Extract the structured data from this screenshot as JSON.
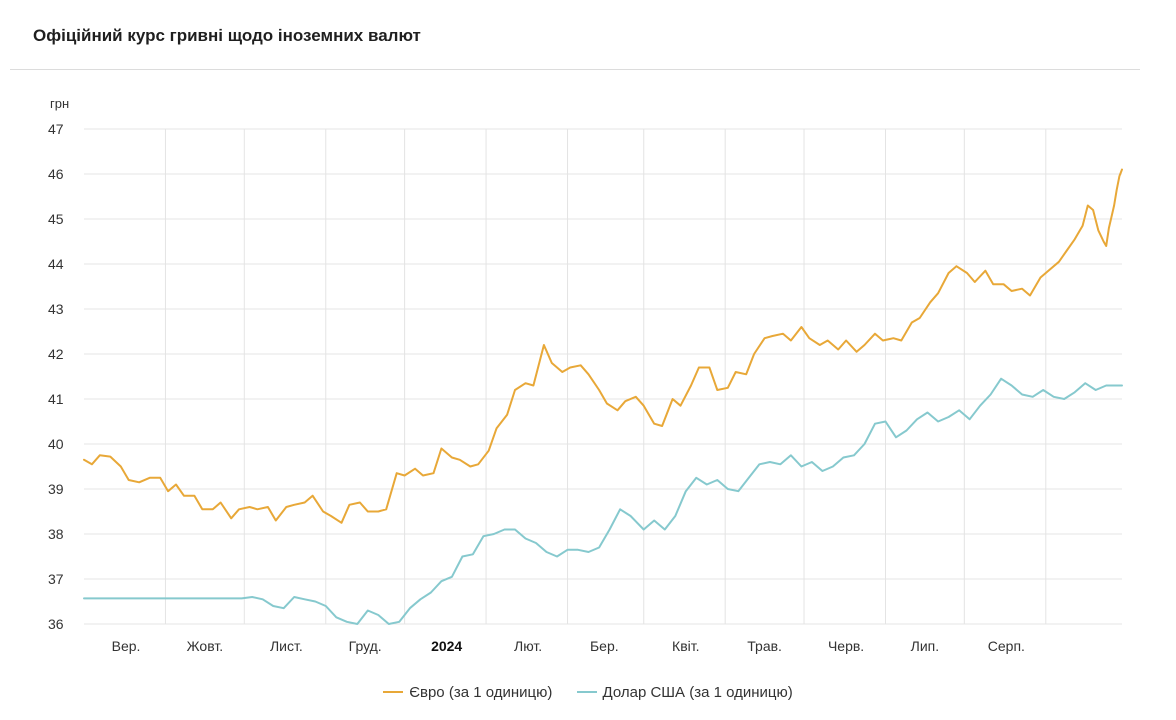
{
  "title": "Офіційний курс гривні щодо іноземних валют",
  "chart_data": {
    "type": "line",
    "ylabel": "грн",
    "ylim": [
      36,
      47
    ],
    "yticks": [
      36,
      37,
      38,
      39,
      40,
      41,
      42,
      43,
      44,
      45,
      46,
      47
    ],
    "xlim": [
      "2023-08-01",
      "2024-08-30"
    ],
    "xticks": [
      {
        "label": "Вер.",
        "date": "2023-09-01",
        "bold": false
      },
      {
        "label": "Жовт.",
        "date": "2023-10-01",
        "bold": false
      },
      {
        "label": "Лист.",
        "date": "2023-11-01",
        "bold": false
      },
      {
        "label": "Груд.",
        "date": "2023-12-01",
        "bold": false
      },
      {
        "label": "2024",
        "date": "2024-01-01",
        "bold": true
      },
      {
        "label": "Лют.",
        "date": "2024-02-01",
        "bold": false
      },
      {
        "label": "Бер.",
        "date": "2024-03-01",
        "bold": false
      },
      {
        "label": "Квіт.",
        "date": "2024-04-01",
        "bold": false
      },
      {
        "label": "Трав.",
        "date": "2024-05-01",
        "bold": false
      },
      {
        "label": "Черв.",
        "date": "2024-06-01",
        "bold": false
      },
      {
        "label": "Лип.",
        "date": "2024-07-01",
        "bold": false
      },
      {
        "label": "Серп.",
        "date": "2024-08-01",
        "bold": false
      }
    ],
    "grid": true,
    "legend_position": "bottom",
    "series": [
      {
        "name": "Євро (за 1 одиницю)",
        "color": "#E8A838",
        "points": [
          [
            "2023-08-01",
            39.65
          ],
          [
            "2023-08-04",
            39.55
          ],
          [
            "2023-08-07",
            39.75
          ],
          [
            "2023-08-11",
            39.72
          ],
          [
            "2023-08-15",
            39.5
          ],
          [
            "2023-08-18",
            39.2
          ],
          [
            "2023-08-22",
            39.15
          ],
          [
            "2023-08-26",
            39.25
          ],
          [
            "2023-08-30",
            39.25
          ],
          [
            "2023-09-02",
            38.95
          ],
          [
            "2023-09-05",
            39.1
          ],
          [
            "2023-09-08",
            38.85
          ],
          [
            "2023-09-12",
            38.85
          ],
          [
            "2023-09-15",
            38.55
          ],
          [
            "2023-09-19",
            38.55
          ],
          [
            "2023-09-22",
            38.7
          ],
          [
            "2023-09-26",
            38.35
          ],
          [
            "2023-09-29",
            38.55
          ],
          [
            "2023-10-03",
            38.6
          ],
          [
            "2023-10-06",
            38.55
          ],
          [
            "2023-10-10",
            38.6
          ],
          [
            "2023-10-13",
            38.3
          ],
          [
            "2023-10-17",
            38.6
          ],
          [
            "2023-10-20",
            38.65
          ],
          [
            "2023-10-24",
            38.7
          ],
          [
            "2023-10-27",
            38.85
          ],
          [
            "2023-10-31",
            38.5
          ],
          [
            "2023-11-03",
            38.4
          ],
          [
            "2023-11-07",
            38.25
          ],
          [
            "2023-11-10",
            38.65
          ],
          [
            "2023-11-14",
            38.7
          ],
          [
            "2023-11-17",
            38.5
          ],
          [
            "2023-11-21",
            38.5
          ],
          [
            "2023-11-24",
            38.55
          ],
          [
            "2023-11-28",
            39.35
          ],
          [
            "2023-12-01",
            39.3
          ],
          [
            "2023-12-05",
            39.45
          ],
          [
            "2023-12-08",
            39.3
          ],
          [
            "2023-12-12",
            39.35
          ],
          [
            "2023-12-15",
            39.9
          ],
          [
            "2023-12-19",
            39.7
          ],
          [
            "2023-12-22",
            39.65
          ],
          [
            "2023-12-26",
            39.5
          ],
          [
            "2023-12-29",
            39.55
          ],
          [
            "2024-01-02",
            39.85
          ],
          [
            "2024-01-05",
            40.35
          ],
          [
            "2024-01-09",
            40.65
          ],
          [
            "2024-01-12",
            41.2
          ],
          [
            "2024-01-16",
            41.35
          ],
          [
            "2024-01-19",
            41.3
          ],
          [
            "2024-01-23",
            42.2
          ],
          [
            "2024-01-26",
            41.8
          ],
          [
            "2024-01-30",
            41.6
          ],
          [
            "2024-02-02",
            41.7
          ],
          [
            "2024-02-06",
            41.75
          ],
          [
            "2024-02-09",
            41.55
          ],
          [
            "2024-02-13",
            41.2
          ],
          [
            "2024-02-16",
            40.9
          ],
          [
            "2024-02-20",
            40.75
          ],
          [
            "2024-02-23",
            40.95
          ],
          [
            "2024-02-27",
            41.05
          ],
          [
            "2024-03-01",
            40.85
          ],
          [
            "2024-03-05",
            40.45
          ],
          [
            "2024-03-08",
            40.4
          ],
          [
            "2024-03-12",
            41.0
          ],
          [
            "2024-03-15",
            40.85
          ],
          [
            "2024-03-19",
            41.3
          ],
          [
            "2024-03-22",
            41.7
          ],
          [
            "2024-03-26",
            41.7
          ],
          [
            "2024-03-29",
            41.2
          ],
          [
            "2024-04-02",
            41.25
          ],
          [
            "2024-04-05",
            41.6
          ],
          [
            "2024-04-09",
            41.55
          ],
          [
            "2024-04-12",
            42.0
          ],
          [
            "2024-04-16",
            42.35
          ],
          [
            "2024-04-19",
            42.4
          ],
          [
            "2024-04-23",
            42.45
          ],
          [
            "2024-04-26",
            42.3
          ],
          [
            "2024-04-30",
            42.6
          ],
          [
            "2024-05-03",
            42.35
          ],
          [
            "2024-05-07",
            42.2
          ],
          [
            "2024-05-10",
            42.3
          ],
          [
            "2024-05-14",
            42.1
          ],
          [
            "2024-05-17",
            42.3
          ],
          [
            "2024-05-21",
            42.05
          ],
          [
            "2024-05-24",
            42.2
          ],
          [
            "2024-05-28",
            42.45
          ],
          [
            "2024-05-31",
            42.3
          ],
          [
            "2024-06-04",
            42.35
          ],
          [
            "2024-06-07",
            42.3
          ],
          [
            "2024-06-11",
            42.7
          ],
          [
            "2024-06-14",
            42.8
          ],
          [
            "2024-06-18",
            43.15
          ],
          [
            "2024-06-21",
            43.35
          ],
          [
            "2024-06-25",
            43.8
          ],
          [
            "2024-06-28",
            43.95
          ],
          [
            "2024-07-02",
            43.8
          ],
          [
            "2024-07-05",
            43.6
          ],
          [
            "2024-07-09",
            43.85
          ],
          [
            "2024-07-12",
            43.55
          ],
          [
            "2024-07-16",
            43.55
          ],
          [
            "2024-07-19",
            43.4
          ],
          [
            "2024-07-23",
            43.45
          ],
          [
            "2024-07-26",
            43.3
          ],
          [
            "2024-07-30",
            43.7
          ],
          [
            "2024-08-02",
            43.85
          ],
          [
            "2024-08-06",
            44.05
          ],
          [
            "2024-08-09",
            44.3
          ],
          [
            "2024-08-12",
            44.55
          ],
          [
            "2024-08-15",
            44.85
          ],
          [
            "2024-08-17",
            45.3
          ],
          [
            "2024-08-19",
            45.2
          ],
          [
            "2024-08-21",
            44.75
          ],
          [
            "2024-08-23",
            44.5
          ],
          [
            "2024-08-24",
            44.4
          ],
          [
            "2024-08-25",
            44.8
          ],
          [
            "2024-08-26",
            45.05
          ],
          [
            "2024-08-27",
            45.3
          ],
          [
            "2024-08-28",
            45.65
          ],
          [
            "2024-08-29",
            45.95
          ],
          [
            "2024-08-30",
            46.1
          ]
        ]
      },
      {
        "name": "Долар США (за 1 одиницю)",
        "color": "#86C9CE",
        "points": [
          [
            "2023-08-01",
            36.57
          ],
          [
            "2023-08-20",
            36.57
          ],
          [
            "2023-09-10",
            36.57
          ],
          [
            "2023-09-30",
            36.57
          ],
          [
            "2023-10-04",
            36.6
          ],
          [
            "2023-10-08",
            36.55
          ],
          [
            "2023-10-12",
            36.4
          ],
          [
            "2023-10-16",
            36.35
          ],
          [
            "2023-10-20",
            36.6
          ],
          [
            "2023-10-24",
            36.55
          ],
          [
            "2023-10-28",
            36.5
          ],
          [
            "2023-11-01",
            36.4
          ],
          [
            "2023-11-05",
            36.15
          ],
          [
            "2023-11-09",
            36.05
          ],
          [
            "2023-11-13",
            36.0
          ],
          [
            "2023-11-17",
            36.3
          ],
          [
            "2023-11-21",
            36.2
          ],
          [
            "2023-11-25",
            36.0
          ],
          [
            "2023-11-29",
            36.05
          ],
          [
            "2023-12-03",
            36.35
          ],
          [
            "2023-12-07",
            36.55
          ],
          [
            "2023-12-11",
            36.7
          ],
          [
            "2023-12-15",
            36.95
          ],
          [
            "2023-12-19",
            37.05
          ],
          [
            "2023-12-23",
            37.5
          ],
          [
            "2023-12-27",
            37.55
          ],
          [
            "2023-12-31",
            37.95
          ],
          [
            "2024-01-04",
            38.0
          ],
          [
            "2024-01-08",
            38.1
          ],
          [
            "2024-01-12",
            38.1
          ],
          [
            "2024-01-16",
            37.9
          ],
          [
            "2024-01-20",
            37.8
          ],
          [
            "2024-01-24",
            37.6
          ],
          [
            "2024-01-28",
            37.5
          ],
          [
            "2024-02-01",
            37.65
          ],
          [
            "2024-02-05",
            37.65
          ],
          [
            "2024-02-09",
            37.6
          ],
          [
            "2024-02-13",
            37.7
          ],
          [
            "2024-02-17",
            38.1
          ],
          [
            "2024-02-21",
            38.55
          ],
          [
            "2024-02-25",
            38.4
          ],
          [
            "2024-03-01",
            38.1
          ],
          [
            "2024-03-05",
            38.3
          ],
          [
            "2024-03-09",
            38.1
          ],
          [
            "2024-03-13",
            38.4
          ],
          [
            "2024-03-17",
            38.95
          ],
          [
            "2024-03-21",
            39.25
          ],
          [
            "2024-03-25",
            39.1
          ],
          [
            "2024-03-29",
            39.2
          ],
          [
            "2024-04-02",
            39.0
          ],
          [
            "2024-04-06",
            38.95
          ],
          [
            "2024-04-10",
            39.25
          ],
          [
            "2024-04-14",
            39.55
          ],
          [
            "2024-04-18",
            39.6
          ],
          [
            "2024-04-22",
            39.55
          ],
          [
            "2024-04-26",
            39.75
          ],
          [
            "2024-04-30",
            39.5
          ],
          [
            "2024-05-04",
            39.6
          ],
          [
            "2024-05-08",
            39.4
          ],
          [
            "2024-05-12",
            39.5
          ],
          [
            "2024-05-16",
            39.7
          ],
          [
            "2024-05-20",
            39.75
          ],
          [
            "2024-05-24",
            40.0
          ],
          [
            "2024-05-28",
            40.45
          ],
          [
            "2024-06-01",
            40.5
          ],
          [
            "2024-06-05",
            40.15
          ],
          [
            "2024-06-09",
            40.3
          ],
          [
            "2024-06-13",
            40.55
          ],
          [
            "2024-06-17",
            40.7
          ],
          [
            "2024-06-21",
            40.5
          ],
          [
            "2024-06-25",
            40.6
          ],
          [
            "2024-06-29",
            40.75
          ],
          [
            "2024-07-03",
            40.55
          ],
          [
            "2024-07-07",
            40.85
          ],
          [
            "2024-07-11",
            41.1
          ],
          [
            "2024-07-15",
            41.45
          ],
          [
            "2024-07-19",
            41.3
          ],
          [
            "2024-07-23",
            41.1
          ],
          [
            "2024-07-27",
            41.05
          ],
          [
            "2024-07-31",
            41.2
          ],
          [
            "2024-08-04",
            41.05
          ],
          [
            "2024-08-08",
            41.0
          ],
          [
            "2024-08-12",
            41.15
          ],
          [
            "2024-08-16",
            41.35
          ],
          [
            "2024-08-20",
            41.2
          ],
          [
            "2024-08-24",
            41.3
          ],
          [
            "2024-08-27",
            41.3
          ],
          [
            "2024-08-30",
            41.3
          ]
        ]
      }
    ]
  }
}
